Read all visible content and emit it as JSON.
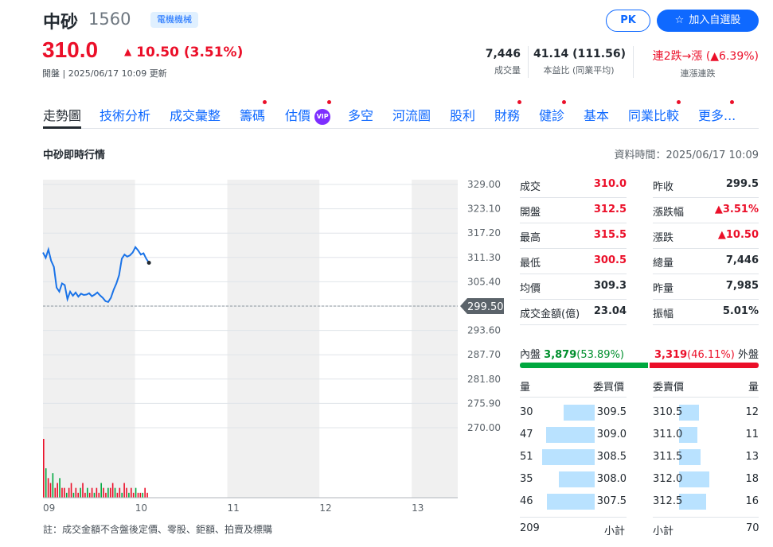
{
  "stock": {
    "name": "中砂",
    "code": "1560",
    "industry": "電機機械",
    "price": "310.0",
    "change": "10.50 (3.51%)",
    "status": "開盤 | 2025/06/17 10:09 更新"
  },
  "buttons": {
    "pk": "PK",
    "add_watch": "加入自選股"
  },
  "stats": [
    {
      "value": "7,446",
      "label": "成交量"
    },
    {
      "value": "41.14 (111.56)",
      "label": "本益比 (同業平均)"
    },
    {
      "value": "連2跌→漲 (▲6.39%)",
      "label": "連漲連跌"
    }
  ],
  "tabs": [
    "走勢圖",
    "技術分析",
    "成交彙整",
    "籌碼",
    "估價",
    "多空",
    "河流圖",
    "股利",
    "財務",
    "健診",
    "基本",
    "同業比較",
    "更多..."
  ],
  "vip_label": "VIP",
  "section": {
    "title": "中砂即時行情",
    "data_time": "資料時間：2025/06/17 10:09"
  },
  "chart_data": {
    "type": "line",
    "x_ticks": [
      "09",
      "10",
      "11",
      "12",
      "13"
    ],
    "y_ticks": [
      "329.00",
      "323.10",
      "317.20",
      "311.30",
      "305.40",
      "299.50",
      "293.60",
      "287.70",
      "281.80",
      "275.90",
      "270.00"
    ],
    "ylim": [
      270.0,
      329.0
    ],
    "reference_price": 299.5,
    "reference_label": "299.50",
    "time_range": [
      "09:00",
      "13:30"
    ],
    "series": [
      {
        "values": [
          312.5,
          311.2,
          313.2,
          310.5,
          309.0,
          304.0,
          303.0,
          305.0,
          304.6,
          301.2,
          303.0,
          302.0,
          302.8,
          301.8,
          302.5,
          302.2,
          302.3,
          302.6,
          301.9,
          302.3,
          302.8,
          302.1,
          301.5,
          300.7,
          300.5,
          301.5,
          303.5,
          305.0,
          307.0,
          311.0,
          312.0,
          311.5,
          311.8,
          312.5,
          313.8,
          313.0,
          312.0,
          312.3,
          311.0,
          310.0
        ]
      }
    ],
    "volume": [
      12,
      6,
      4,
      3,
      5,
      2,
      3,
      4,
      2,
      2,
      1,
      2,
      3,
      1,
      2,
      1,
      2,
      3,
      1,
      2,
      1,
      2,
      1,
      2,
      1,
      3,
      2,
      1,
      2,
      2,
      3,
      2,
      1,
      2,
      1,
      3,
      2,
      1,
      2,
      1,
      2,
      1,
      1,
      1,
      2,
      1
    ],
    "colors": {
      "line": "#1a73e8",
      "up": "#eb0f29",
      "down": "#00a83f"
    }
  },
  "chart_note": "註：成交金額不含盤後定價、零股、鉅額、拍賣及標購",
  "quote_left": [
    {
      "label": "成交",
      "value": "310.0",
      "color": "red"
    },
    {
      "label": "開盤",
      "value": "312.5",
      "color": "red"
    },
    {
      "label": "最高",
      "value": "315.5",
      "color": "red"
    },
    {
      "label": "最低",
      "value": "300.5",
      "color": "red"
    },
    {
      "label": "均價",
      "value": "309.3",
      "color": "black"
    },
    {
      "label": "成交金額(億)",
      "value": "23.04",
      "color": "black"
    }
  ],
  "quote_right": [
    {
      "label": "昨收",
      "value": "299.5",
      "color": "black"
    },
    {
      "label": "漲跌幅",
      "value": "▲3.51%",
      "color": "red"
    },
    {
      "label": "漲跌",
      "value": "▲10.50",
      "color": "red"
    },
    {
      "label": "總量",
      "value": "7,446",
      "color": "black"
    },
    {
      "label": "昨量",
      "value": "7,985",
      "color": "black"
    },
    {
      "label": "振幅",
      "value": "5.01%",
      "color": "black"
    }
  ],
  "inout": {
    "in_label": "內盤",
    "in_value": "3,879",
    "in_pct": "(53.89%)",
    "in_ratio": 0.5389,
    "out_label": "外盤",
    "out_value": "3,319",
    "out_pct": "(46.11%)"
  },
  "orderbook": {
    "headers": {
      "bid_qty": "量",
      "bid_price": "委買價",
      "ask_price": "委賣價",
      "ask_qty": "量"
    },
    "rows": [
      {
        "bid_qty": "30",
        "bid_price": "309.5",
        "ask_price": "310.5",
        "ask_qty": "12"
      },
      {
        "bid_qty": "47",
        "bid_price": "309.0",
        "ask_price": "311.0",
        "ask_qty": "11"
      },
      {
        "bid_qty": "51",
        "bid_price": "308.5",
        "ask_price": "311.5",
        "ask_qty": "13"
      },
      {
        "bid_qty": "35",
        "bid_price": "308.0",
        "ask_price": "312.0",
        "ask_qty": "18"
      },
      {
        "bid_qty": "46",
        "bid_price": "307.5",
        "ask_price": "312.5",
        "ask_qty": "16"
      }
    ],
    "bid_total": "209",
    "ask_total": "70",
    "subtotal_label": "小計"
  }
}
